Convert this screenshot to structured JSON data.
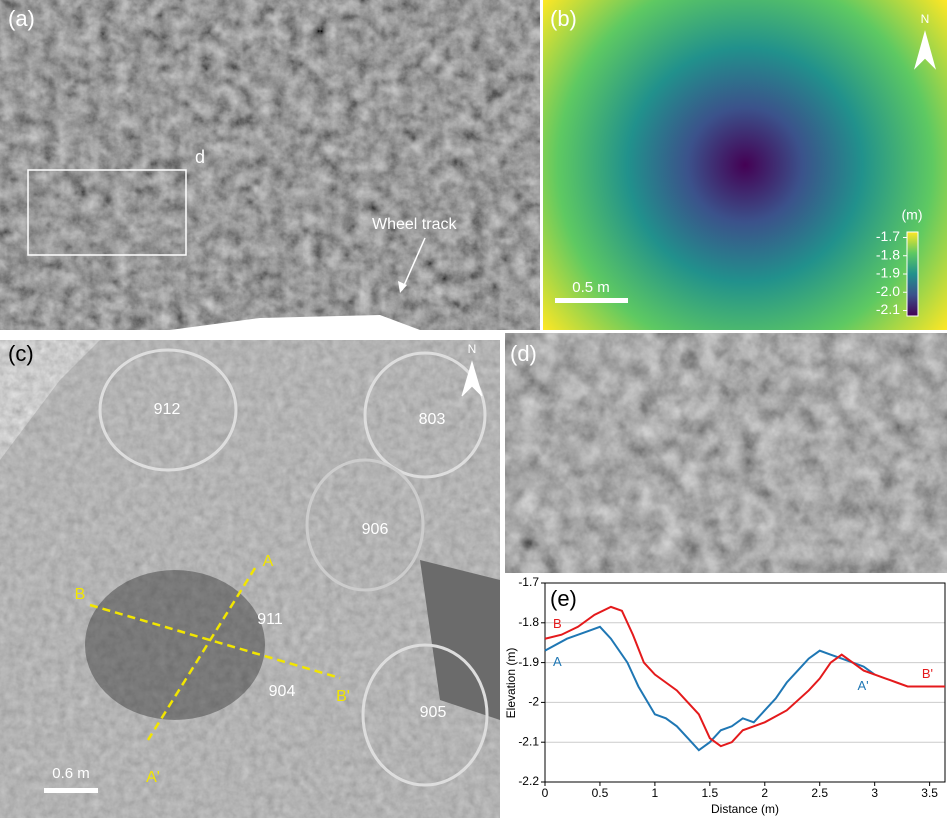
{
  "panels": {
    "a": {
      "label": "(a)",
      "box_label": "d",
      "annotation": "Wheel track"
    },
    "b": {
      "label": "(b)",
      "compass": "N",
      "scale_bar": "0.5 m",
      "colorbar_unit": "(m)",
      "colorbar_lim": [
        -2.13,
        -1.67
      ],
      "colorbar_ticks": [
        {
          "value": -1.7,
          "label": "-1.7"
        },
        {
          "value": -1.8,
          "label": "-1.8"
        },
        {
          "value": -1.9,
          "label": "-1.9"
        },
        {
          "value": -2,
          "label": "-2.0"
        },
        {
          "value": -2.1,
          "label": "-2.1"
        }
      ]
    },
    "c": {
      "label": "(c)",
      "compass": "N",
      "scale_bar": "0.6 m",
      "sites": [
        "912",
        "803",
        "906",
        "911",
        "904",
        "905"
      ],
      "profile_ends": [
        "A",
        "A'",
        "B",
        "B'"
      ]
    },
    "d": {
      "label": "(d)"
    }
  },
  "chart_data": {
    "type": "line",
    "panel_label": "(e)",
    "x_label": "Distance (m)",
    "y_label": "Elevation (m)",
    "xlim": [
      0,
      3.64
    ],
    "ylim": [
      -2.2,
      -1.7
    ],
    "xticks": [
      0,
      0.5,
      1,
      1.5,
      2,
      2.5,
      3,
      3.5
    ],
    "yticks": [
      -1.7,
      -1.8,
      -1.9,
      -2,
      -2.1,
      -2.2
    ],
    "grid": true,
    "series": [
      {
        "name": "A",
        "end_label": "A'",
        "color": "#1f77b4",
        "x": [
          0,
          0.2,
          0.4,
          0.5,
          0.6,
          0.75,
          0.85,
          1.0,
          1.1,
          1.2,
          1.3,
          1.4,
          1.5,
          1.6,
          1.7,
          1.8,
          1.9,
          2.0,
          2.1,
          2.2,
          2.3,
          2.4,
          2.5,
          2.6,
          2.7,
          2.8,
          2.9,
          3.0
        ],
        "values": [
          -1.87,
          -1.84,
          -1.82,
          -1.81,
          -1.84,
          -1.9,
          -1.96,
          -2.03,
          -2.04,
          -2.06,
          -2.09,
          -2.12,
          -2.1,
          -2.07,
          -2.06,
          -2.04,
          -2.05,
          -2.02,
          -1.99,
          -1.95,
          -1.92,
          -1.89,
          -1.87,
          -1.88,
          -1.89,
          -1.9,
          -1.91,
          -1.93
        ]
      },
      {
        "name": "B",
        "end_label": "B'",
        "color": "#e41a1c",
        "x": [
          0,
          0.15,
          0.3,
          0.45,
          0.6,
          0.7,
          0.8,
          0.9,
          1.0,
          1.1,
          1.2,
          1.3,
          1.4,
          1.5,
          1.6,
          1.7,
          1.8,
          1.9,
          2.0,
          2.2,
          2.4,
          2.5,
          2.6,
          2.7,
          2.8,
          2.9,
          3.0,
          3.1,
          3.2,
          3.3,
          3.4,
          3.5,
          3.64
        ],
        "values": [
          -1.84,
          -1.83,
          -1.81,
          -1.78,
          -1.76,
          -1.77,
          -1.83,
          -1.9,
          -1.93,
          -1.95,
          -1.97,
          -2.0,
          -2.03,
          -2.09,
          -2.11,
          -2.1,
          -2.07,
          -2.06,
          -2.05,
          -2.02,
          -1.97,
          -1.94,
          -1.9,
          -1.88,
          -1.9,
          -1.92,
          -1.93,
          -1.94,
          -1.95,
          -1.96,
          -1.96,
          -1.96,
          -1.96
        ]
      }
    ]
  }
}
